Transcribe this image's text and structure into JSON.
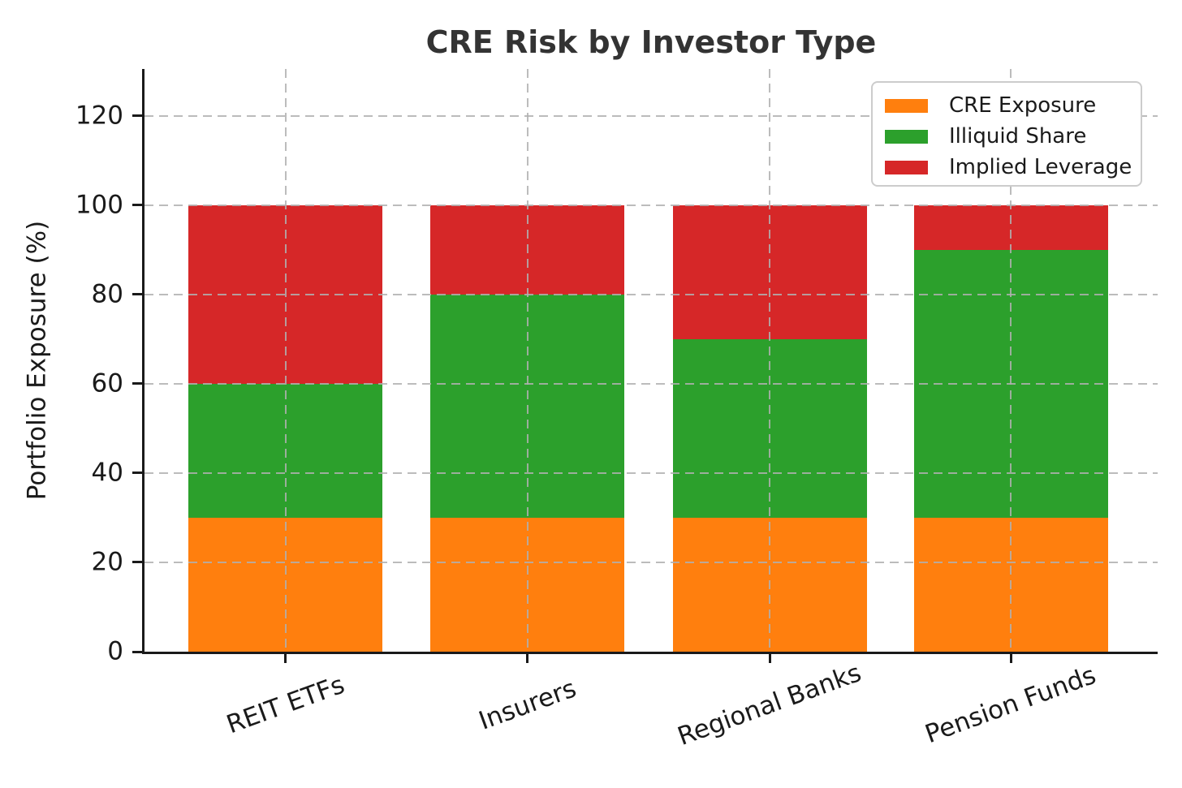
{
  "chart_data": {
    "type": "bar",
    "stacked": true,
    "title": "CRE Risk by Investor Type",
    "xlabel": "",
    "ylabel": "Portfolio Exposure (%)",
    "categories": [
      "REIT ETFs",
      "Insurers",
      "Regional Banks",
      "Pension Funds"
    ],
    "series": [
      {
        "name": "CRE Exposure",
        "color": "#FF7F0E",
        "values": [
          30,
          30,
          30,
          30
        ]
      },
      {
        "name": "Illiquid Share",
        "color": "#2CA02C",
        "values": [
          30,
          50,
          40,
          60
        ]
      },
      {
        "name": "Implied Leverage",
        "color": "#D62728",
        "values": [
          40,
          20,
          30,
          10
        ]
      }
    ],
    "stack_totals": [
      100,
      100,
      100,
      100
    ],
    "yticks": [
      0,
      20,
      40,
      60,
      80,
      100,
      120
    ],
    "ylim": [
      0,
      130.5
    ],
    "grid": {
      "style": "dashed",
      "axes": "both",
      "vertical_lines_at": "bar centers"
    },
    "legend_position": "upper-right",
    "x_tick_rotation_deg": 20
  },
  "style": {
    "background": "#ffffff",
    "title_color": "#333333",
    "text_color": "#1a1a1a",
    "spine_color": "#1a1a1a",
    "grid_color": "#b0b0b0",
    "legend_border_color": "#cccccc"
  }
}
